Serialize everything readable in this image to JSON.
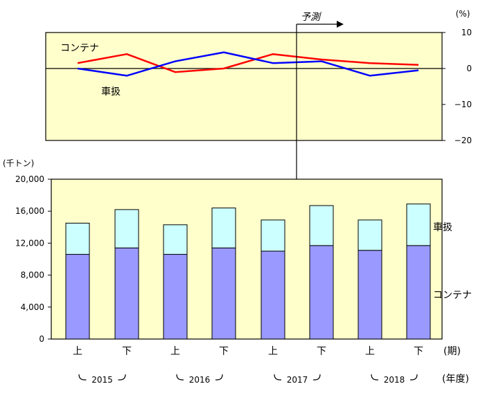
{
  "chart_data": [
    {
      "type": "line",
      "title": "",
      "unit_label": "(%)",
      "x": [
        "2015上",
        "2015下",
        "2016上",
        "2016下",
        "2017上",
        "2017下",
        "2018上",
        "2018下"
      ],
      "series": [
        {
          "name": "コンテナ",
          "color": "#ff0000",
          "values": [
            1.5,
            4,
            -1,
            0,
            4,
            2.5,
            1.5,
            1
          ]
        },
        {
          "name": "車扱",
          "color": "#0000ff",
          "values": [
            0,
            -2,
            2,
            4.5,
            1.5,
            2,
            -2,
            -0.5
          ]
        }
      ],
      "ylim": [
        -20,
        10
      ],
      "yticks": [
        "10",
        "0",
        "−10",
        "−20"
      ],
      "yticks_values": [
        10,
        0,
        -10,
        -20
      ],
      "forecast_label": "予測",
      "forecast_start_index": 5
    },
    {
      "type": "bar",
      "stacked": true,
      "unit_label": "(千トン)",
      "categories": [
        "上",
        "下",
        "上",
        "下",
        "上",
        "下",
        "上",
        "下"
      ],
      "series": [
        {
          "name": "コンテナ",
          "color": "#9999ff",
          "values": [
            10600,
            11400,
            10600,
            11400,
            11000,
            11700,
            11100,
            11700
          ]
        },
        {
          "name": "車扱",
          "color": "#ccffff",
          "values": [
            3900,
            4800,
            3700,
            5000,
            3900,
            5000,
            3800,
            5200
          ]
        }
      ],
      "ylim": [
        0,
        20000
      ],
      "yticks": [
        "20,000",
        "16,000",
        "12,000",
        "8,000",
        "4,000",
        "0"
      ],
      "yticks_values": [
        20000,
        16000,
        12000,
        8000,
        4000,
        0
      ],
      "period_axis_label": "(期)",
      "years": [
        "2015",
        "2016",
        "2017",
        "2018"
      ],
      "year_axis_label": "(年度)"
    }
  ],
  "colors": {
    "panel_bg": "#ffffcc",
    "frame": "#000000"
  }
}
